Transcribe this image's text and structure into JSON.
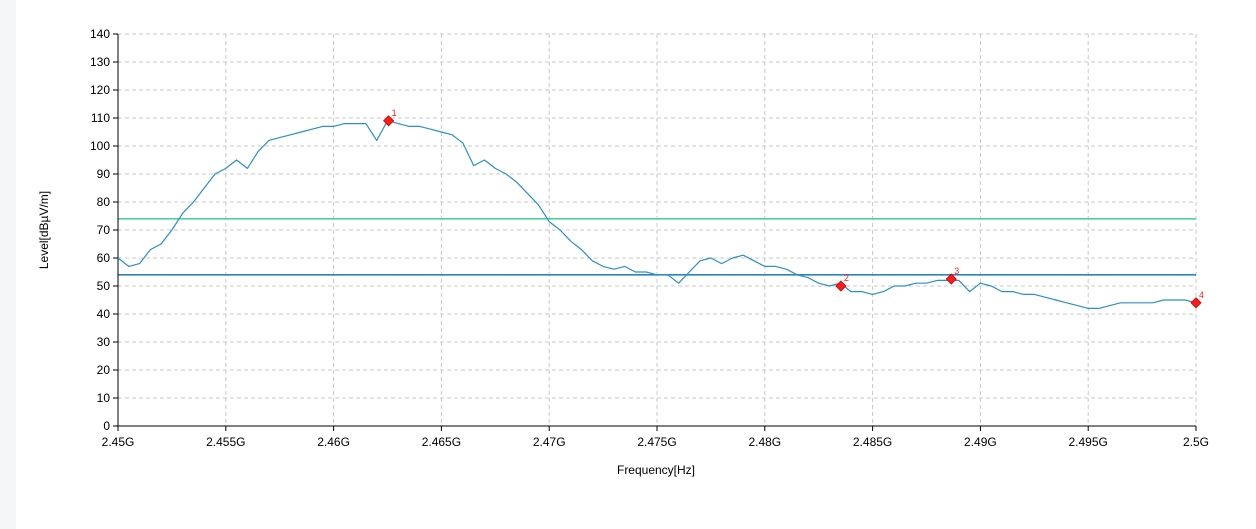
{
  "chart_data": {
    "type": "line",
    "xlabel": "Frequency[Hz]",
    "ylabel": "Level[dBµV/m]",
    "xlim": [
      2.45,
      2.5
    ],
    "ylim": [
      0,
      140
    ],
    "x_ticks": [
      2.45,
      2.455,
      2.46,
      2.465,
      2.47,
      2.475,
      2.48,
      2.485,
      2.49,
      2.495,
      2.5
    ],
    "x_tick_labels": [
      "2.45G",
      "2.455G",
      "2.46G",
      "2.465G",
      "2.47G",
      "2.475G",
      "2.48G",
      "2.485G",
      "2.49G",
      "2.495G",
      "2.5G"
    ],
    "y_ticks": [
      0,
      10,
      20,
      30,
      40,
      50,
      60,
      70,
      80,
      90,
      100,
      110,
      120,
      130,
      140
    ],
    "grid": true,
    "limit_lines": [
      {
        "value": 74,
        "color": "#4cd39b"
      },
      {
        "value": 54,
        "color": "#2a86b8"
      }
    ],
    "series": [
      {
        "color": "#2a90c8",
        "x": [
          2.45,
          2.4505,
          2.451,
          2.4515,
          2.452,
          2.4525,
          2.453,
          2.4535,
          2.454,
          2.4545,
          2.455,
          2.4555,
          2.456,
          2.4565,
          2.457,
          2.4575,
          2.458,
          2.4585,
          2.459,
          2.4595,
          2.46,
          2.4605,
          2.461,
          2.4615,
          2.462,
          2.4625,
          2.463,
          2.4635,
          2.464,
          2.4645,
          2.465,
          2.4655,
          2.466,
          2.4665,
          2.467,
          2.4675,
          2.468,
          2.4685,
          2.469,
          2.4695,
          2.47,
          2.4705,
          2.471,
          2.4715,
          2.472,
          2.4725,
          2.473,
          2.4735,
          2.474,
          2.4745,
          2.475,
          2.4755,
          2.476,
          2.4765,
          2.477,
          2.4775,
          2.478,
          2.4785,
          2.479,
          2.4795,
          2.48,
          2.4805,
          2.481,
          2.4815,
          2.482,
          2.4825,
          2.483,
          2.4835,
          2.484,
          2.4845,
          2.485,
          2.4855,
          2.486,
          2.4865,
          2.487,
          2.4875,
          2.488,
          2.4885,
          2.489,
          2.4895,
          2.49,
          2.4905,
          2.491,
          2.4915,
          2.492,
          2.4925,
          2.493,
          2.4935,
          2.494,
          2.4945,
          2.495,
          2.4955,
          2.496,
          2.4965,
          2.497,
          2.4975,
          2.498,
          2.4985,
          2.499,
          2.4995,
          2.5
        ],
        "y": [
          60,
          57,
          58,
          63,
          65,
          70,
          76,
          80,
          85,
          90,
          92,
          95,
          92,
          98,
          102,
          103,
          104,
          105,
          106,
          107,
          107,
          108,
          108,
          108,
          102,
          109,
          108,
          107,
          107,
          106,
          105,
          104,
          101,
          93,
          95,
          92,
          90,
          87,
          83,
          79,
          73,
          70,
          66,
          63,
          59,
          57,
          56,
          57,
          55,
          55,
          54,
          54,
          51,
          55,
          59,
          60,
          58,
          60,
          61,
          59,
          57,
          57,
          56,
          54,
          53,
          51,
          50,
          51,
          48,
          48,
          47,
          48,
          50,
          50,
          51,
          51,
          52,
          52,
          52,
          48,
          51,
          50,
          48,
          48,
          47,
          47,
          46,
          45,
          44,
          43,
          42,
          42,
          43,
          44,
          44,
          44,
          44,
          45,
          45,
          45,
          44
        ]
      }
    ],
    "markers": [
      {
        "label": "1",
        "x": 2.46255,
        "y": 109
      },
      {
        "label": "2",
        "x": 2.48353,
        "y": 50
      },
      {
        "label": "3",
        "x": 2.48865,
        "y": 52.5
      },
      {
        "label": "4",
        "x": 2.5,
        "y": 44
      }
    ]
  }
}
